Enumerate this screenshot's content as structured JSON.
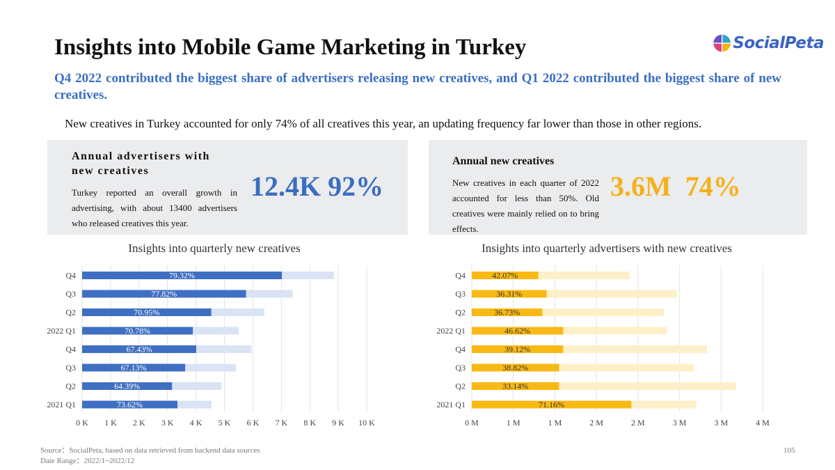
{
  "header": {
    "title": "Insights into Mobile Game Marketing in Turkey",
    "brand": "SocialPeta",
    "subtitle": "Q4 2022 contributed the biggest share of advertisers releasing new creatives, and Q1 2022 contributed the biggest share of new creatives.",
    "summary": "New creatives in Turkey accounted for only 74% of all creatives this year, an updating frequency far lower than those in other regions."
  },
  "cards": {
    "advertisers": {
      "title": "Annual advertisers with new creatives",
      "description": "Turkey reported an overall growth in advertising, with about 13400 advertisers who released creatives this year.",
      "metric": "12.4K 92%"
    },
    "creatives": {
      "title": "Annual new creatives",
      "description": "New creatives in each quarter of 2022 accounted for less than 50%. Old creatives were mainly relied on to bring effects.",
      "metric": "3.6M  74%"
    }
  },
  "chart_data": [
    {
      "type": "bar",
      "orientation": "horizontal",
      "title": "Insights into quarterly new creatives",
      "categories": [
        "Q4",
        "Q3",
        "Q2",
        "2022 Q1",
        "Q4",
        "Q3",
        "Q2",
        "2021 Q1"
      ],
      "series": [
        {
          "values": [
            8.85,
            7.4,
            6.4,
            5.5,
            5.95,
            5.4,
            4.9,
            4.55
          ]
        },
        {
          "values": [
            7.02,
            5.76,
            4.54,
            3.89,
            4.01,
            3.62,
            3.16,
            3.35
          ]
        }
      ],
      "bar_labels": [
        "79.32%",
        "77.82%",
        "70.95%",
        "70.78%",
        "67.43%",
        "67.13%",
        "64.39%",
        "73.62%"
      ],
      "xlim": [
        0,
        10
      ],
      "x_ticks": [
        0,
        1,
        2,
        3,
        4,
        5,
        6,
        7,
        8,
        9,
        10
      ],
      "x_tick_labels": [
        "0 K",
        "1 K",
        "2 K",
        "3 K",
        "4 K",
        "5 K",
        "6 K",
        "7 K",
        "8 K",
        "9 K",
        "10 K"
      ],
      "grid": true,
      "colors": {
        "total": "#d9e3f3",
        "new": "#3f6fc2",
        "label": "#ffffff",
        "grid": "#e3e3e3",
        "tick": "#444444"
      }
    },
    {
      "type": "bar",
      "orientation": "horizontal",
      "title": "Insights into quarterly advertisers with new creatives",
      "categories": [
        "Q4",
        "Q3",
        "Q2",
        "2022 Q1",
        "Q4",
        "Q3",
        "Q2",
        "2021 Q1"
      ],
      "series": [
        {
          "values": [
            1.9,
            2.47,
            2.31,
            2.35,
            2.83,
            2.67,
            3.18,
            2.7
          ]
        },
        {
          "values": [
            0.8,
            0.9,
            0.85,
            1.1,
            1.1,
            1.05,
            1.05,
            1.92
          ]
        }
      ],
      "bar_labels": [
        "42.07%",
        "36.31%",
        "36.73%",
        "46.62%",
        "39.12%",
        "38.82%",
        "33.14%",
        "71.16%"
      ],
      "xlim": [
        0,
        3.5
      ],
      "x_ticks": [
        0,
        0.5,
        1,
        1.5,
        2,
        2.5,
        3,
        3.5
      ],
      "x_tick_labels": [
        "0 M",
        "1 M",
        "1 M",
        "2 M",
        "2 M",
        "3 M",
        "3 M",
        "4 M"
      ],
      "grid": true,
      "colors": {
        "total": "#fdf0c8",
        "new": "#f9b914",
        "label": "#333333",
        "grid": "#e3e3e3",
        "tick": "#444444"
      }
    }
  ],
  "footer": {
    "source": "Source：SocialPeta, based on data retrieved from backend data sources",
    "date_range": "Date Range：2022/1~2022/12",
    "page_number": "105"
  }
}
